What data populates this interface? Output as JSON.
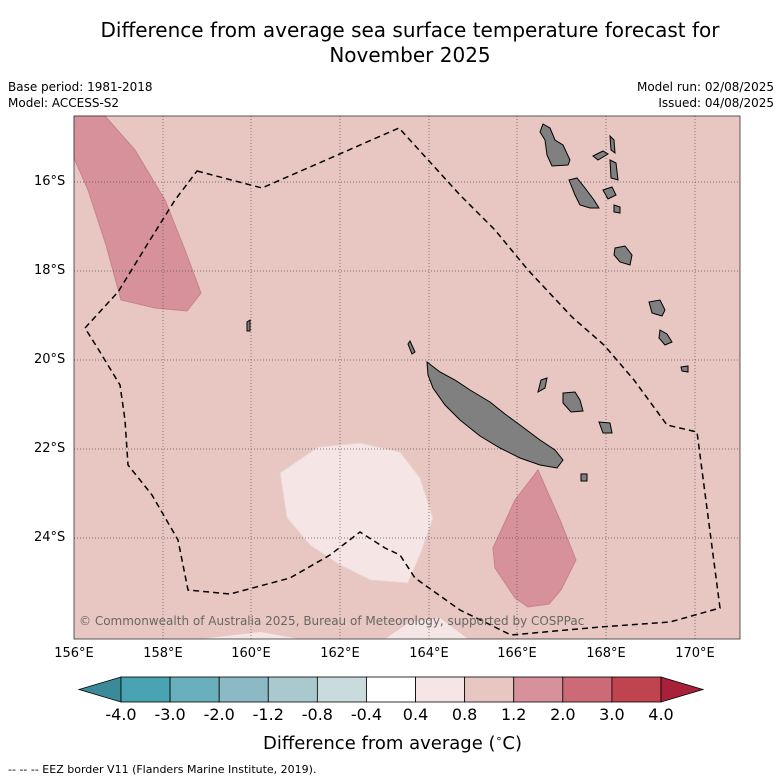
{
  "title_line1": "Difference from average sea surface temperature forecast for",
  "title_line2": "November 2025",
  "meta_left": [
    "Base period: 1981-2018",
    "Model: ACCESS-S2"
  ],
  "meta_right": [
    "Model run: 02/08/2025",
    "Issued: 04/08/2025"
  ],
  "lat_labels": [
    "16°S",
    "18°S",
    "20°S",
    "22°S",
    "24°S"
  ],
  "lon_labels": [
    "156°E",
    "158°E",
    "160°E",
    "162°E",
    "164°E",
    "166°E",
    "168°E",
    "170°E"
  ],
  "copyright": "© Commonwealth of Australia 2025, Bureau of Meteorology, supported by COSPPac",
  "colorbar": {
    "ticks": [
      "-4.0",
      "-3.0",
      "-2.0",
      "-1.2",
      "-0.8",
      "-0.4",
      "0.4",
      "0.8",
      "1.2",
      "2.0",
      "3.0",
      "4.0"
    ],
    "colors": [
      "#3a8a9a",
      "#4aa3b3",
      "#6aafbc",
      "#8cbac4",
      "#a9c9ce",
      "#c9dbdd",
      "#ffffff",
      "#f5e5e4",
      "#e8c7c3",
      "#d7919a",
      "#cc6a77",
      "#c0444f",
      "#a8203a"
    ],
    "label": "Difference from average ($^\\circ$C)"
  },
  "footnote": "-- -- -- EEZ border V11 (Flanders Marine Institute, 2019)."
}
